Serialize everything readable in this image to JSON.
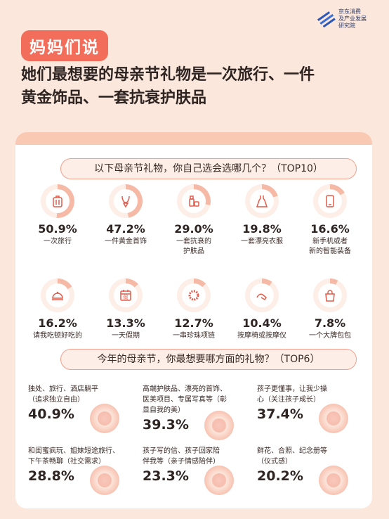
{
  "brand": {
    "line1": "京东消费",
    "line2": "及产业发展",
    "line3": "研究院"
  },
  "tag": "妈妈们说",
  "headline": {
    "line1": "她们最想要的母亲节礼物是一次旅行、一件",
    "line2": "黄金饰品、一套抗衰护肤品"
  },
  "colors": {
    "accent": "#f26e5a",
    "ring": "#f6b9a6",
    "bg": "#fbe7dc"
  },
  "q1": "以下母亲节礼物，你自己选会选哪几个？（TOP10）",
  "top10": [
    {
      "pct": "50.9%",
      "label": "一次旅行",
      "icon": "suitcase-icon",
      "value": 50.9
    },
    {
      "pct": "47.2%",
      "label": "一件黄金首饰",
      "icon": "necklace-icon",
      "value": 47.2
    },
    {
      "pct": "29.0%",
      "label": "一套抗衰的",
      "label2": "护肤品",
      "icon": "skincare-icon",
      "value": 29.0
    },
    {
      "pct": "19.8%",
      "label": "一套漂亮衣服",
      "icon": "dress-icon",
      "value": 19.8
    },
    {
      "pct": "16.6%",
      "label": "新手机或者",
      "label2": "新的智能装备",
      "icon": "phone-icon",
      "value": 16.6
    },
    {
      "pct": "16.2%",
      "label": "请我吃顿好吃的",
      "icon": "dish-icon",
      "value": 16.2
    },
    {
      "pct": "13.3%",
      "label": "一天假期",
      "icon": "calendar-icon",
      "value": 13.3,
      "cal": "假"
    },
    {
      "pct": "12.7%",
      "label": "一串珍珠项链",
      "icon": "pearl-icon",
      "value": 12.7
    },
    {
      "pct": "10.4%",
      "label": "按摩椅或按摩仪",
      "icon": "massage-icon",
      "value": 10.4
    },
    {
      "pct": "7.8%",
      "label": "一个大牌包包",
      "icon": "handbag-icon",
      "value": 7.8
    }
  ],
  "q2": "今年的母亲节，你最想要哪方面的礼物？（TOP6）",
  "top6": [
    {
      "text1": "独处、旅行、酒店躺平",
      "text2": "（追求独立自由）",
      "text3": "",
      "pct": "40.9%"
    },
    {
      "text1": "高端护肤品、漂亮的首饰、",
      "text2": "医美项目、专属写真等（彰",
      "text3": "显自我的美）",
      "pct": "39.3%"
    },
    {
      "text1": "孩子更懂事，让我少操",
      "text2": "心（关注孩子成长）",
      "text3": "",
      "pct": "37.4%"
    },
    {
      "text1": "和闺蜜疯玩、姐妹短途旅行、",
      "text2": "下午茶畅聊（社交需求）",
      "text3": "",
      "pct": "28.8%"
    },
    {
      "text1": "孩子写的信、孩子回家陪",
      "text2": "伴我等（亲子情感陪伴）",
      "text3": "",
      "pct": "23.3%"
    },
    {
      "text1": "鲜花、合照、纪念册等",
      "text2": "（仪式感）",
      "text3": "",
      "pct": "20.2%"
    }
  ]
}
